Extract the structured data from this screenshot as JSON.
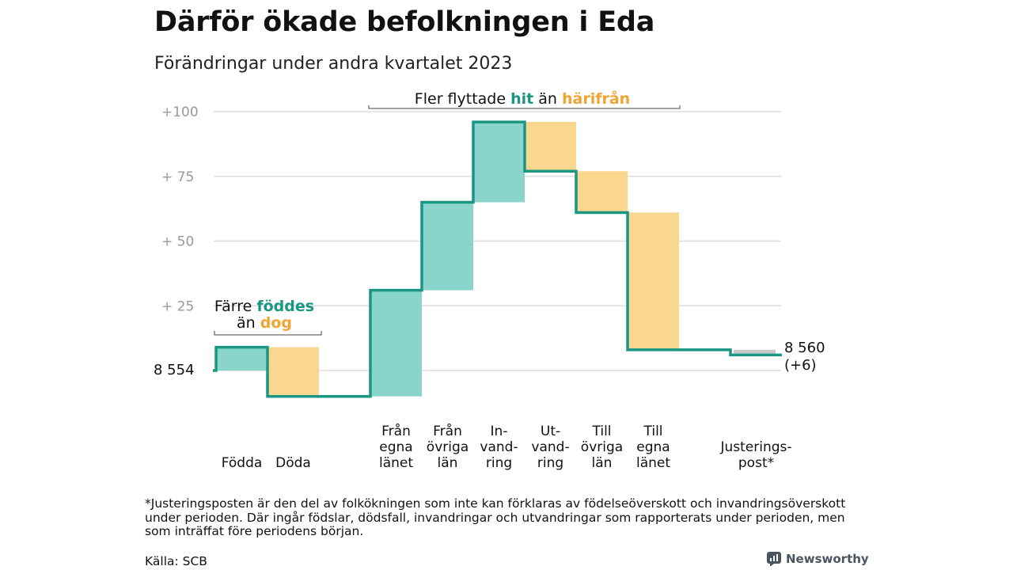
{
  "title": "Därför ökade befolkningen i Eda",
  "subtitle": "Förändringar under andra kvartalet 2023",
  "footnote": "*Justeringsposten är den del av folkökningen som inte kan förklaras av födelseöverskott och invandringsöverskott under perioden. Där ingår födslar, dödsfall, invandringar och utvandringar som rapporterats under perioden, men som inträffat före periodens början.",
  "source": "Källa: SCB",
  "brand": {
    "name": "Newsworthy",
    "icon": "newsworthy-logo-icon"
  },
  "colors": {
    "increase": "#8ad5cb",
    "decrease": "#fad78e",
    "line": "#1a9682",
    "adjustment": "#c8c8c8",
    "grid": "#dddddd",
    "tick": "#999999",
    "accent_teal": "#1a9682",
    "accent_orange": "#f0a533"
  },
  "chart_data": {
    "type": "waterfall",
    "start_value": 8554,
    "end_value": 8560,
    "start_label": "8  554",
    "end_label": "8 560",
    "end_change_label": "(+6)",
    "ylim": [
      -10,
      100
    ],
    "yticks": [
      {
        "value": 100,
        "label": "+100"
      },
      {
        "value": 75,
        "label": "+  75"
      },
      {
        "value": 50,
        "label": "+  50"
      },
      {
        "value": 25,
        "label": "+  25"
      },
      {
        "value": 0,
        "label": ""
      }
    ],
    "steps": [
      {
        "label": [
          "Födda"
        ],
        "value": 9,
        "kind": "increase"
      },
      {
        "label": [
          "Döda"
        ],
        "value": -19,
        "kind": "decrease"
      },
      {
        "label": [],
        "value": 0,
        "kind": "gap"
      },
      {
        "label": [
          "Från",
          "egna",
          "länet"
        ],
        "value": 41,
        "kind": "increase"
      },
      {
        "label": [
          "Från",
          "övriga",
          "län"
        ],
        "value": 34,
        "kind": "increase"
      },
      {
        "label": [
          "In-",
          "vand-",
          "ring"
        ],
        "value": 31,
        "kind": "increase"
      },
      {
        "label": [
          "Ut-",
          "vand-",
          "ring"
        ],
        "value": -19,
        "kind": "decrease"
      },
      {
        "label": [
          "Till",
          "övriga",
          "län"
        ],
        "value": -16,
        "kind": "decrease"
      },
      {
        "label": [
          "Till",
          "egna",
          "länet"
        ],
        "value": -53,
        "kind": "decrease"
      },
      {
        "label": [],
        "value": 0,
        "kind": "gap"
      },
      {
        "label": [
          "Justerings-",
          "post*"
        ],
        "value": -2,
        "kind": "adjustment"
      }
    ],
    "annotations": [
      {
        "parts": [
          {
            "text": "Färre ",
            "color": "dark"
          },
          {
            "text": "föddes",
            "color": "teal"
          }
        ]
      },
      {
        "parts": [
          {
            "text": "än ",
            "color": "dark"
          },
          {
            "text": "dog",
            "color": "orange"
          }
        ]
      },
      {
        "parts": [
          {
            "text": "Fler flyttade ",
            "color": "dark"
          },
          {
            "text": "hit",
            "color": "teal"
          },
          {
            "text": " än ",
            "color": "dark"
          },
          {
            "text": "härifrån",
            "color": "orange"
          }
        ]
      }
    ]
  }
}
